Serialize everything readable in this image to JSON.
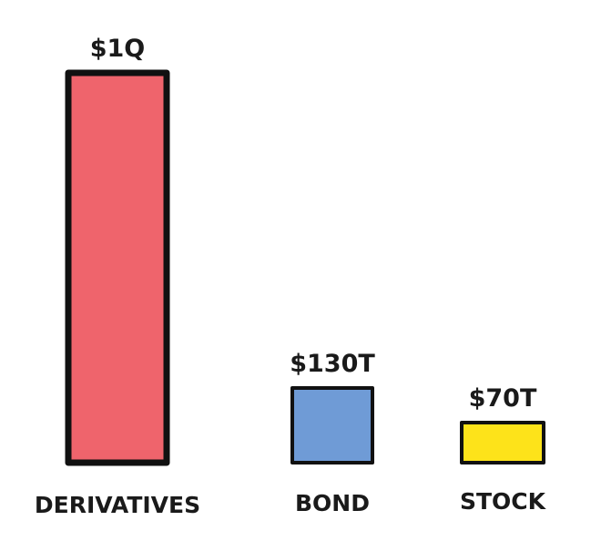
{
  "chart_data": {
    "type": "bar",
    "categories": [
      "DERIVATIVES",
      "BOND",
      "STOCK"
    ],
    "values": [
      1000,
      130,
      70
    ],
    "value_unit": "trillion USD",
    "data_labels": [
      "$1Q",
      "$130T",
      "$70T"
    ],
    "colors": [
      "#ef646c",
      "#6f9bd6",
      "#fde31a"
    ],
    "title": "",
    "xlabel": "",
    "ylabel": "",
    "grid": false,
    "legend": "none"
  }
}
